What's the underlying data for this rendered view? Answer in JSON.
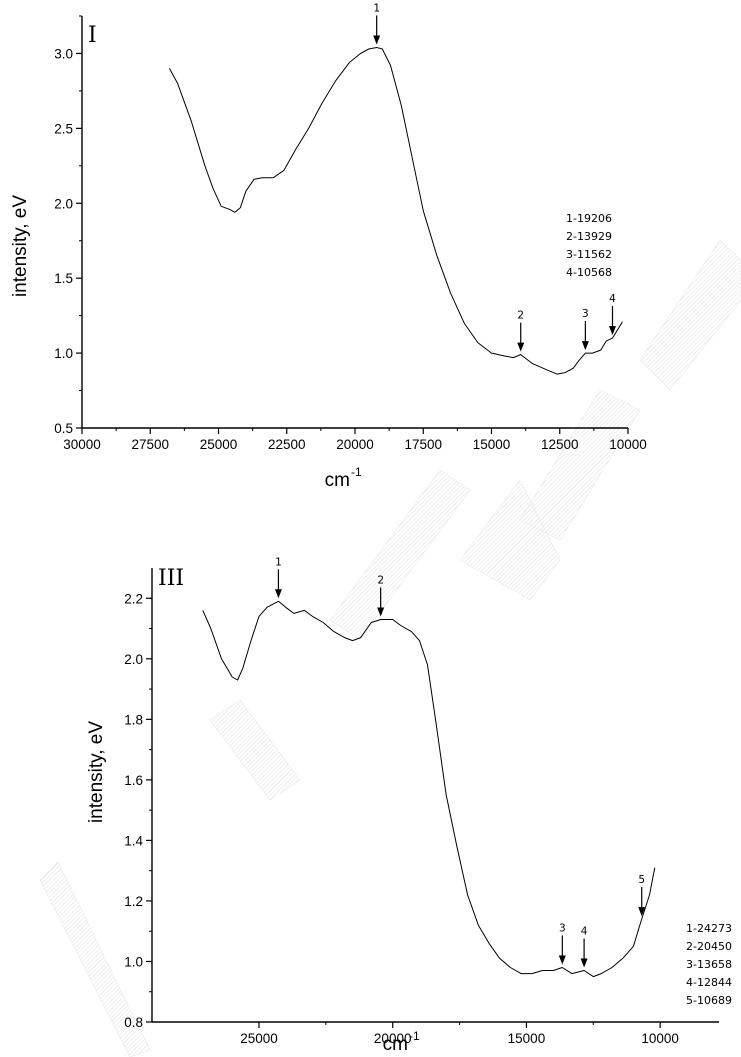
{
  "chart_data": [
    {
      "type": "line",
      "panel_label": "I",
      "xlabel": "cm",
      "xlabel_superscript": "-1",
      "ylabel": "intensity, eV",
      "xlim": [
        30000,
        10000
      ],
      "ylim": [
        0.5,
        3.25
      ],
      "x_ticks": [
        "30000",
        "27500",
        "25000",
        "22500",
        "20000",
        "17500",
        "15000",
        "12500",
        "10000"
      ],
      "x_tick_values": [
        30000,
        27500,
        25000,
        22500,
        20000,
        17500,
        15000,
        12500,
        10000
      ],
      "y_ticks": [
        "0.5",
        "1.0",
        "1.5",
        "2.0",
        "2.5",
        "3.0"
      ],
      "y_tick_values": [
        0.5,
        1.0,
        1.5,
        2.0,
        2.5,
        3.0
      ],
      "series": [
        {
          "x": [
            26800,
            26500,
            26000,
            25500,
            25200,
            24900,
            24600,
            24400,
            24200,
            24000,
            23700,
            23400,
            23000,
            22600,
            22200,
            21700,
            21200,
            20700,
            20200,
            19800,
            19500,
            19206,
            19000,
            18700,
            18300,
            17900,
            17500,
            17000,
            16500,
            16000,
            15500,
            15000,
            14500,
            14200,
            13929,
            13500,
            13000,
            12600,
            12300,
            12000,
            11800,
            11562,
            11300,
            11000,
            10800,
            10568,
            10400,
            10200
          ],
          "y": [
            2.9,
            2.8,
            2.55,
            2.25,
            2.1,
            1.98,
            1.96,
            1.94,
            1.97,
            2.08,
            2.16,
            2.17,
            2.17,
            2.22,
            2.35,
            2.5,
            2.67,
            2.82,
            2.94,
            3.0,
            3.03,
            3.04,
            3.03,
            2.92,
            2.65,
            2.3,
            1.95,
            1.65,
            1.4,
            1.2,
            1.07,
            1.0,
            0.98,
            0.97,
            0.99,
            0.93,
            0.89,
            0.86,
            0.87,
            0.9,
            0.95,
            1.0,
            1.0,
            1.02,
            1.08,
            1.1,
            1.15,
            1.21
          ]
        }
      ],
      "annotations": [
        {
          "label": "1",
          "x": 19206,
          "y": 3.04
        },
        {
          "label": "2",
          "x": 13929,
          "y": 0.99
        },
        {
          "label": "3",
          "x": 11562,
          "y": 1.0
        },
        {
          "label": "4",
          "x": 10568,
          "y": 1.1
        }
      ],
      "peak_list": [
        "1-19206",
        "2-13929",
        "3-11562",
        "4-10568"
      ]
    },
    {
      "type": "line",
      "panel_label": "III",
      "xlabel": "cm",
      "xlabel_superscript": "-1",
      "ylabel": "intensity, eV",
      "xlim": [
        29000,
        7800
      ],
      "ylim": [
        0.8,
        2.3
      ],
      "x_ticks": [
        "25000",
        "20000",
        "15000",
        "10000"
      ],
      "x_tick_values": [
        25000,
        20000,
        15000,
        10000
      ],
      "y_ticks": [
        "0.8",
        "1.0",
        "1.2",
        "1.4",
        "1.6",
        "1.8",
        "2.0",
        "2.2"
      ],
      "y_tick_values": [
        0.8,
        1.0,
        1.2,
        1.4,
        1.6,
        1.8,
        2.0,
        2.2
      ],
      "series": [
        {
          "x": [
            27100,
            26800,
            26400,
            26000,
            25800,
            25600,
            25300,
            25000,
            24700,
            24273,
            24000,
            23700,
            23300,
            23000,
            22600,
            22200,
            21800,
            21500,
            21200,
            20800,
            20450,
            20000,
            19700,
            19300,
            19000,
            18700,
            18400,
            18000,
            17600,
            17200,
            16800,
            16400,
            16000,
            15600,
            15200,
            14800,
            14400,
            14000,
            13658,
            13300,
            12844,
            12500,
            12200,
            11800,
            11400,
            11000,
            10689,
            10400,
            10200
          ],
          "y": [
            2.16,
            2.1,
            2.0,
            1.94,
            1.93,
            1.97,
            2.06,
            2.14,
            2.17,
            2.19,
            2.17,
            2.15,
            2.16,
            2.14,
            2.12,
            2.09,
            2.07,
            2.06,
            2.07,
            2.12,
            2.13,
            2.13,
            2.11,
            2.09,
            2.06,
            1.98,
            1.8,
            1.55,
            1.38,
            1.22,
            1.12,
            1.06,
            1.01,
            0.98,
            0.96,
            0.96,
            0.97,
            0.97,
            0.98,
            0.96,
            0.97,
            0.95,
            0.96,
            0.98,
            1.01,
            1.05,
            1.14,
            1.22,
            1.31
          ]
        }
      ],
      "annotations": [
        {
          "label": "1",
          "x": 24273,
          "y": 2.19
        },
        {
          "label": "2",
          "x": 20450,
          "y": 2.13
        },
        {
          "label": "3",
          "x": 13658,
          "y": 0.98
        },
        {
          "label": "4",
          "x": 12844,
          "y": 0.97
        },
        {
          "label": "5",
          "x": 10689,
          "y": 1.14
        }
      ],
      "peak_list": [
        "1-24273",
        "2-20450",
        "3-13658",
        "4-12844",
        "5-10689"
      ]
    }
  ]
}
